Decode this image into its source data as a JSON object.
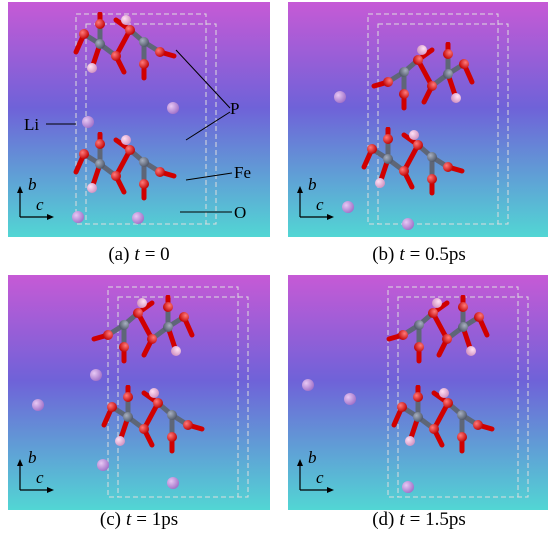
{
  "panels": [
    {
      "label": "(a)",
      "variable": "t",
      "value": "= 0",
      "axes": {
        "vertical": "b",
        "horizontal": "c"
      }
    },
    {
      "label": "(b)",
      "variable": "t",
      "value": "= 0.5ps",
      "axes": {
        "vertical": "b",
        "horizontal": "c"
      }
    },
    {
      "label": "(c)",
      "variable": "t",
      "value": "= 1ps",
      "axes": {
        "vertical": "b",
        "horizontal": "c"
      }
    },
    {
      "label": "(d)",
      "variable": "t",
      "value": "= 1.5ps",
      "axes": {
        "vertical": "b",
        "horizontal": "c"
      }
    }
  ],
  "annotations": {
    "li": "Li",
    "p": "P",
    "fe": "Fe",
    "o": "O"
  }
}
